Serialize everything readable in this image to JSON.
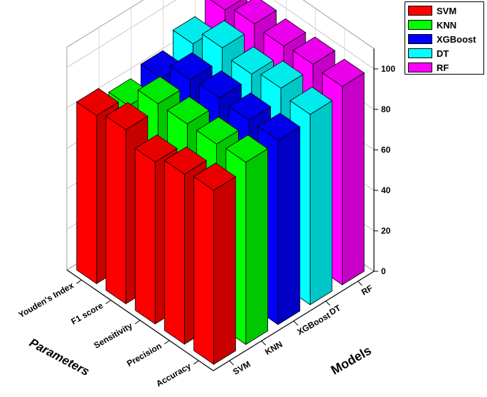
{
  "chart_data": {
    "type": "bar3d",
    "categories": [
      "Accuracy",
      "Precision",
      "Sensitivity",
      "F1 score",
      "Youden's Index"
    ],
    "models": [
      "SVM",
      "KNN",
      "XGBoost",
      "DT",
      "RF"
    ],
    "series": [
      {
        "name": "SVM",
        "color": "#ff0000",
        "values": [
          86,
          84,
          80,
          86,
          83
        ]
      },
      {
        "name": "KNN",
        "color": "#00ff00",
        "values": [
          90,
          89,
          89,
          89,
          78
        ]
      },
      {
        "name": "XGBoost",
        "color": "#0000ff",
        "values": [
          91,
          91,
          92,
          91,
          82
        ]
      },
      {
        "name": "DT",
        "color": "#00ffff",
        "values": [
          94,
          97,
          94,
          97,
          89
        ]
      },
      {
        "name": "RF",
        "color": "#ff00ff",
        "values": [
          98,
          99,
          98,
          99,
          96
        ]
      }
    ],
    "xlabel": "Parameters",
    "ylabel": "Models",
    "zticks": [
      0,
      20,
      40,
      60,
      80,
      100
    ],
    "zlim": [
      0,
      110
    ],
    "legend_position": "top-right"
  }
}
